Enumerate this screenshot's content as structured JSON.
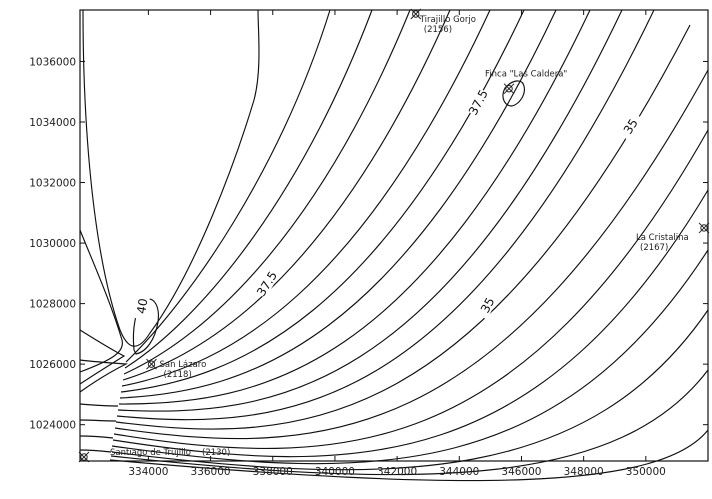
{
  "chart_data": {
    "type": "contour",
    "x_ticks": [
      "334000",
      "336000",
      "338000",
      "340000",
      "342000",
      "344000",
      "346000",
      "348000",
      "350000"
    ],
    "y_ticks": [
      "1024000",
      "1026000",
      "1028000",
      "1030000",
      "1032000",
      "1034000",
      "1036000"
    ],
    "xlim": [
      331800,
      352000
    ],
    "ylim": [
      1022800,
      1037700
    ],
    "contour_labels": [
      {
        "text": "40",
        "x": 333900,
        "y": 1027900
      },
      {
        "text": "37.5",
        "x": 337900,
        "y": 1028600
      },
      {
        "text": "37.5",
        "x": 344700,
        "y": 1034600
      },
      {
        "text": "35",
        "x": 345000,
        "y": 1027900
      },
      {
        "text": "35",
        "x": 349600,
        "y": 1033800
      }
    ],
    "stations": [
      {
        "name": "Tirajillo Gorjo",
        "code": "(2156)",
        "x": 342600,
        "y": 1037700
      },
      {
        "name": "Finca \"Las Caldera\"",
        "code": "",
        "x": 345600,
        "y": 1035100
      },
      {
        "name": "La Cristalina",
        "code": "(2167)",
        "x": 351900,
        "y": 1030500
      },
      {
        "name": "San Lázaro",
        "code": "(2118)",
        "x": 334100,
        "y": 1026000
      },
      {
        "name": "Santiago de Trujillo",
        "code": "(2130)",
        "x": 331800,
        "y": 1022900
      }
    ],
    "grid": false
  }
}
